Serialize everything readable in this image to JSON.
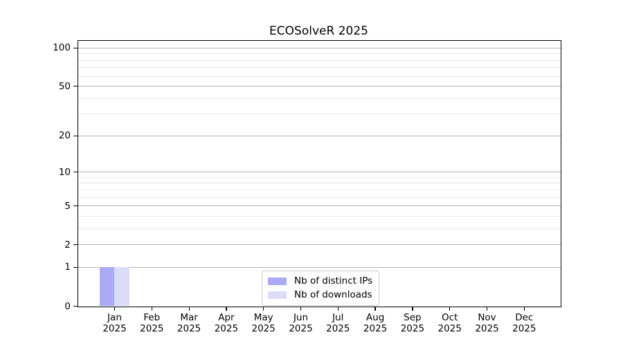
{
  "chart_data": {
    "type": "bar",
    "title": "ECOSolveR 2025",
    "x": {
      "categories": [
        "Jan",
        "Feb",
        "Mar",
        "Apr",
        "May",
        "Jun",
        "Jul",
        "Aug",
        "Sep",
        "Oct",
        "Nov",
        "Dec"
      ],
      "year_label": "2025"
    },
    "series": [
      {
        "name": "Nb of distinct IPs",
        "color": "#aaaaf5",
        "values": [
          1,
          0,
          0,
          0,
          0,
          0,
          0,
          0,
          0,
          0,
          0,
          0
        ]
      },
      {
        "name": "Nb of downloads",
        "color": "#dcdcf8",
        "values": [
          1,
          0,
          0,
          0,
          0,
          0,
          0,
          0,
          0,
          0,
          0,
          0
        ]
      }
    ],
    "yscale": "log1p",
    "ylim": [
      0,
      113
    ],
    "y_major_ticks": [
      100,
      50,
      20,
      10,
      5,
      2,
      1,
      0
    ],
    "y_minor_ticks": [
      90,
      80,
      70,
      60,
      40,
      30,
      9,
      8,
      7,
      6,
      4,
      3
    ],
    "grid": "horizontal-only",
    "legend_position": "lower-center"
  },
  "colors": {
    "bar_distinct_ips": "#aaaaf5",
    "bar_downloads": "#dcdcf8",
    "grid_major": "#b3b3b3",
    "grid_minor": "#e9e9e9",
    "axis": "#000000",
    "legend_border": "#c9c9c9",
    "background": "#ffffff",
    "text": "#000000"
  }
}
